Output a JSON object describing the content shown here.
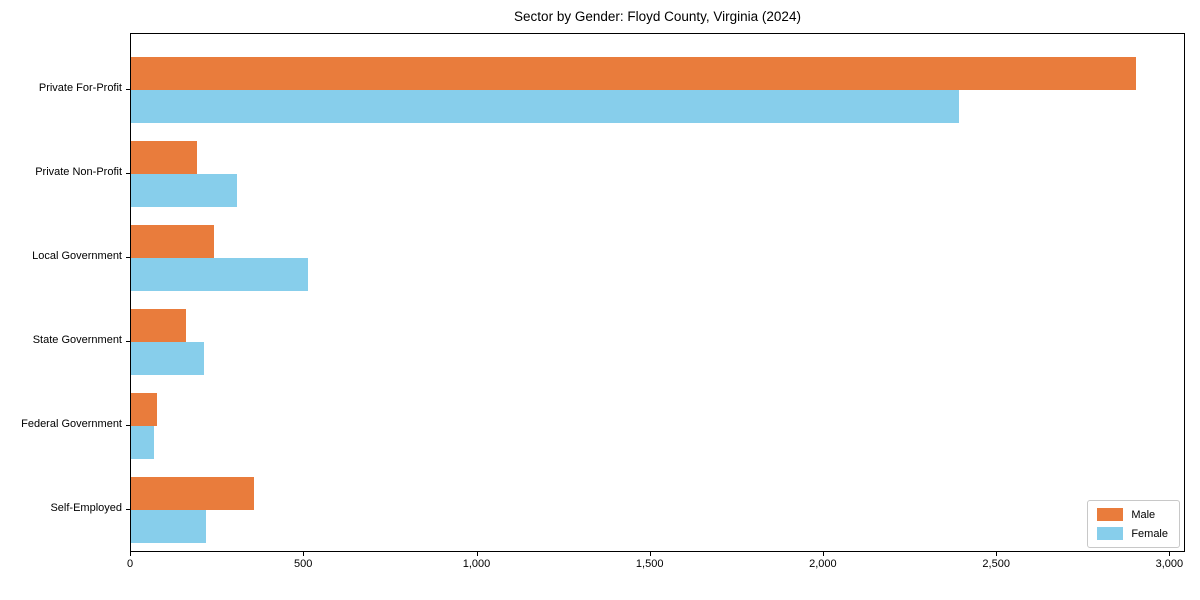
{
  "chart_data": {
    "type": "bar",
    "orientation": "horizontal",
    "title": "Sector by Gender: Floyd County, Virginia (2024)",
    "categories": [
      "Private For-Profit",
      "Private Non-Profit",
      "Local Government",
      "State Government",
      "Federal Government",
      "Self-Employed"
    ],
    "series": [
      {
        "name": "Male",
        "color": "#E97C3C",
        "values": [
          2900,
          190,
          240,
          160,
          75,
          355
        ]
      },
      {
        "name": "Female",
        "color": "#87CEEB",
        "values": [
          2390,
          305,
          510,
          210,
          65,
          215
        ]
      }
    ],
    "xlabel": "",
    "ylabel": "",
    "xlim": [
      0,
      3045
    ],
    "x_ticks": [
      0,
      500,
      1000,
      1500,
      2000,
      2500,
      3000
    ],
    "x_tick_labels": [
      "0",
      "500",
      "1,000",
      "1,500",
      "2,000",
      "2,500",
      "3,000"
    ],
    "grid": false,
    "legend": {
      "position": "lower right",
      "entries": [
        "Male",
        "Female"
      ]
    }
  }
}
